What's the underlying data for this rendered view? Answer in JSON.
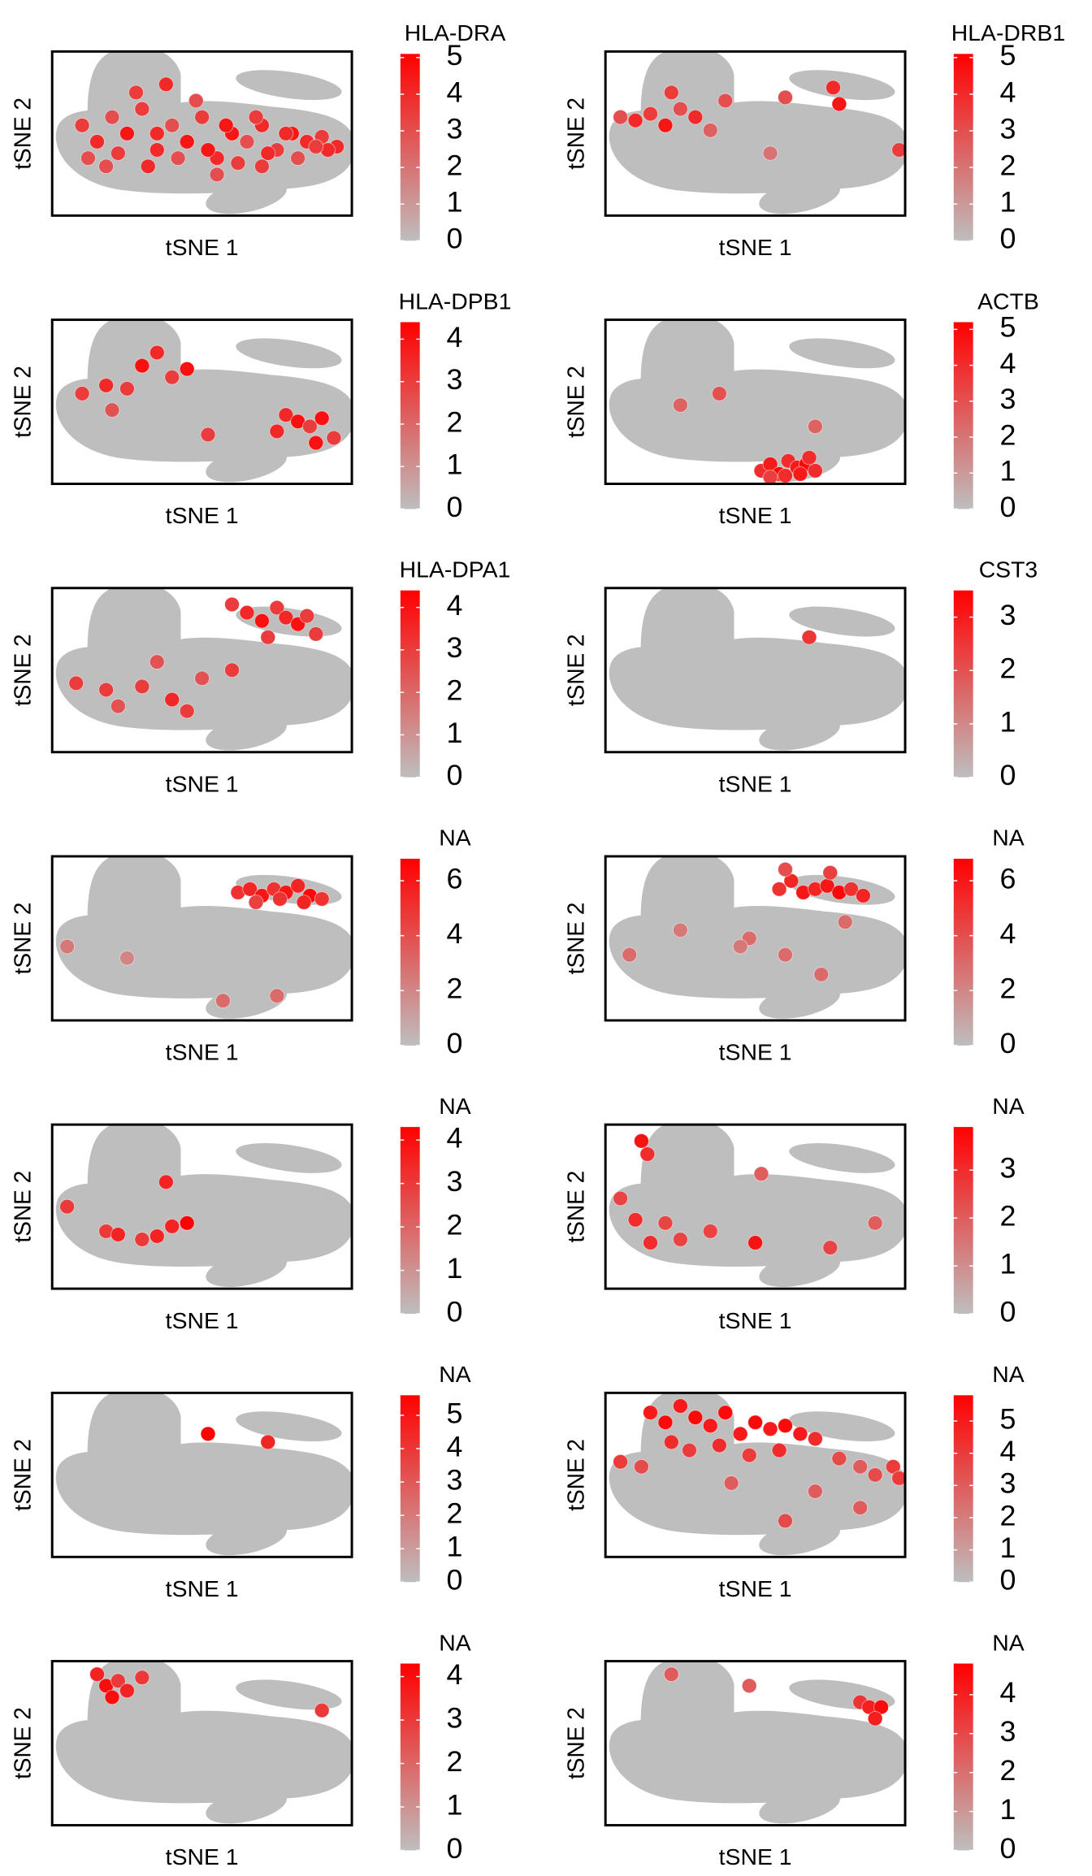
{
  "chart_data": [
    {
      "type": "scatter",
      "title": "HLA-DRA",
      "xlabel": "tSNE 1",
      "ylabel": "tSNE 2",
      "xlim": [
        0,
        100
      ],
      "ylim": [
        0,
        100
      ],
      "clim": [
        0,
        5.1
      ],
      "cticks": [
        0,
        1,
        2,
        3,
        4,
        5
      ],
      "color_low": "#bebebe",
      "color_high": "#ff0000",
      "x": [
        10,
        15,
        20,
        25,
        30,
        35,
        40,
        45,
        50,
        55,
        60,
        65,
        70,
        75,
        80,
        85,
        90,
        95,
        12,
        22,
        32,
        42,
        52,
        62,
        72,
        82,
        92,
        28,
        38,
        48,
        58,
        68,
        78,
        88,
        18,
        35,
        55,
        70
      ],
      "y": [
        55,
        45,
        60,
        50,
        65,
        40,
        55,
        45,
        60,
        35,
        50,
        45,
        55,
        40,
        50,
        45,
        48,
        42,
        35,
        38,
        30,
        35,
        40,
        32,
        38,
        35,
        40,
        75,
        80,
        70,
        55,
        60,
        50,
        42,
        30,
        50,
        25,
        30
      ],
      "values": [
        3.5,
        4,
        3,
        4.5,
        3.5,
        4,
        3,
        4.5,
        3.5,
        4,
        4.5,
        3,
        4,
        3.5,
        4.5,
        4,
        3.5,
        4,
        3,
        3.5,
        4,
        3,
        4.5,
        3.5,
        4,
        3,
        4,
        3.5,
        4,
        3,
        4.5,
        3.5,
        4,
        3.5,
        3,
        4,
        3,
        3.5
      ]
    },
    {
      "type": "scatter",
      "title": "HLA-DRB1",
      "xlabel": "tSNE 1",
      "ylabel": "tSNE 2",
      "xlim": [
        0,
        100
      ],
      "ylim": [
        0,
        100
      ],
      "clim": [
        0,
        5.1
      ],
      "cticks": [
        0,
        1,
        2,
        3,
        4,
        5
      ],
      "color_low": "#bebebe",
      "color_high": "#ff0000",
      "x": [
        5,
        10,
        15,
        20,
        25,
        30,
        35,
        40,
        22,
        60,
        76,
        55,
        78,
        98
      ],
      "y": [
        60,
        58,
        62,
        55,
        65,
        60,
        52,
        70,
        75,
        72,
        78,
        38,
        68,
        40
      ],
      "values": [
        3,
        4,
        3.5,
        4.5,
        3,
        4,
        2.5,
        3,
        3.5,
        3,
        4,
        2,
        4.5,
        3.5
      ]
    },
    {
      "type": "scatter",
      "title": "HLA-DPB1",
      "xlabel": "tSNE 1",
      "ylabel": "tSNE 2",
      "xlim": [
        0,
        100
      ],
      "ylim": [
        0,
        100
      ],
      "clim": [
        0,
        4.4
      ],
      "cticks": [
        0,
        1,
        2,
        3,
        4
      ],
      "color_low": "#bebebe",
      "color_high": "#ff0000",
      "x": [
        10,
        18,
        25,
        30,
        35,
        40,
        45,
        20,
        78,
        82,
        86,
        90,
        94,
        75,
        88,
        52
      ],
      "y": [
        55,
        60,
        58,
        72,
        80,
        65,
        70,
        45,
        42,
        38,
        35,
        40,
        28,
        32,
        25,
        30
      ],
      "values": [
        3,
        3.5,
        3,
        4,
        3.5,
        3,
        4,
        2.5,
        3.5,
        4,
        3,
        4,
        3,
        3.5,
        4,
        3
      ]
    },
    {
      "type": "scatter",
      "title": "ACTB",
      "xlabel": "tSNE 1",
      "ylabel": "tSNE 2",
      "xlim": [
        0,
        100
      ],
      "ylim": [
        0,
        100
      ],
      "clim": [
        0,
        5.2
      ],
      "cticks": [
        0,
        1,
        2,
        3,
        4,
        5
      ],
      "color_low": "#bebebe",
      "color_high": "#ff0000",
      "x": [
        52,
        55,
        58,
        61,
        64,
        67,
        70,
        55,
        60,
        65,
        68,
        25,
        38,
        70
      ],
      "y": [
        8,
        12,
        6,
        14,
        10,
        12,
        8,
        4,
        5,
        6,
        16,
        48,
        55,
        35
      ],
      "values": [
        4,
        4.5,
        5,
        4,
        4.5,
        5,
        4,
        3.5,
        4,
        4.5,
        4,
        2.5,
        3,
        2.5
      ]
    },
    {
      "type": "scatter",
      "title": "HLA-DPA1",
      "xlabel": "tSNE 1",
      "ylabel": "tSNE 2",
      "xlim": [
        0,
        100
      ],
      "ylim": [
        0,
        100
      ],
      "clim": [
        0,
        4.4
      ],
      "cticks": [
        0,
        1,
        2,
        3,
        4
      ],
      "color_low": "#bebebe",
      "color_high": "#ff0000",
      "x": [
        60,
        65,
        70,
        75,
        78,
        82,
        85,
        72,
        8,
        22,
        30,
        40,
        50,
        60,
        45,
        35,
        18,
        88
      ],
      "y": [
        90,
        85,
        80,
        88,
        82,
        78,
        83,
        70,
        42,
        28,
        40,
        32,
        45,
        50,
        25,
        55,
        38,
        72
      ],
      "values": [
        3,
        3.5,
        4,
        3,
        3.5,
        4,
        3,
        3,
        3,
        2.5,
        3,
        3.5,
        2.5,
        3,
        3,
        2.5,
        3,
        3
      ]
    },
    {
      "type": "scatter",
      "title": "CST3",
      "xlabel": "tSNE 1",
      "ylabel": "tSNE 2",
      "xlim": [
        0,
        100
      ],
      "ylim": [
        0,
        100
      ],
      "clim": [
        0,
        3.5
      ],
      "cticks": [
        0,
        1,
        2,
        3
      ],
      "color_low": "#bebebe",
      "color_high": "#ff0000",
      "x": [
        68
      ],
      "y": [
        70
      ],
      "values": [
        2.5
      ]
    },
    {
      "type": "scatter",
      "title": "NA",
      "xlabel": "tSNE 1",
      "ylabel": "tSNE 2",
      "xlim": [
        0,
        100
      ],
      "ylim": [
        0,
        100
      ],
      "clim": [
        0,
        6.8
      ],
      "cticks": [
        0,
        2,
        4,
        6
      ],
      "color_low": "#bebebe",
      "color_high": "#ff0000",
      "x": [
        62,
        66,
        70,
        74,
        78,
        82,
        86,
        90,
        68,
        76,
        84,
        5,
        25,
        75,
        57
      ],
      "y": [
        78,
        80,
        76,
        80,
        78,
        82,
        76,
        74,
        72,
        74,
        72,
        45,
        38,
        15,
        12
      ],
      "values": [
        5,
        5.5,
        6,
        5,
        6,
        5.5,
        6.5,
        5,
        4.5,
        5,
        5.5,
        2.5,
        2,
        3,
        3
      ]
    },
    {
      "type": "scatter",
      "title": "NA",
      "xlabel": "tSNE 1",
      "ylabel": "tSNE 2",
      "xlim": [
        0,
        100
      ],
      "ylim": [
        0,
        100
      ],
      "clim": [
        0,
        6.8
      ],
      "cticks": [
        0,
        2,
        4,
        6
      ],
      "color_low": "#bebebe",
      "color_high": "#ff0000",
      "x": [
        58,
        62,
        66,
        70,
        74,
        78,
        82,
        86,
        60,
        75,
        8,
        25,
        48,
        60,
        45,
        72,
        80
      ],
      "y": [
        80,
        85,
        78,
        80,
        82,
        78,
        80,
        76,
        92,
        90,
        40,
        55,
        50,
        40,
        45,
        28,
        60
      ],
      "values": [
        5,
        5.5,
        6,
        5.5,
        6,
        6.5,
        5,
        5.5,
        4,
        4.5,
        3,
        2.5,
        3,
        3,
        2.5,
        3,
        3
      ]
    },
    {
      "type": "scatter",
      "title": "NA",
      "xlabel": "tSNE 1",
      "ylabel": "tSNE 2",
      "xlim": [
        0,
        100
      ],
      "ylim": [
        0,
        100
      ],
      "clim": [
        0,
        4.3
      ],
      "cticks": [
        0,
        1,
        2,
        3,
        4
      ],
      "color_low": "#bebebe",
      "color_high": "#ff0000",
      "x": [
        5,
        18,
        22,
        30,
        35,
        40,
        45,
        38
      ],
      "y": [
        50,
        35,
        33,
        30,
        32,
        38,
        40,
        65
      ],
      "values": [
        3,
        3,
        3.5,
        3,
        3.5,
        3.5,
        4.3,
        3.5
      ]
    },
    {
      "type": "scatter",
      "title": "NA",
      "xlabel": "tSNE 1",
      "ylabel": "tSNE 2",
      "xlim": [
        0,
        100
      ],
      "ylim": [
        0,
        100
      ],
      "clim": [
        0,
        3.9
      ],
      "cticks": [
        0,
        1,
        2,
        3
      ],
      "color_low": "#bebebe",
      "color_high": "#ff0000",
      "x": [
        12,
        14,
        5,
        10,
        20,
        15,
        25,
        35,
        50,
        52,
        75,
        90
      ],
      "y": [
        90,
        82,
        55,
        42,
        40,
        28,
        30,
        35,
        28,
        70,
        25,
        40
      ],
      "values": [
        3.5,
        3,
        2.5,
        3,
        2.5,
        3,
        2.5,
        2.5,
        3.5,
        2,
        2.5,
        2
      ]
    },
    {
      "type": "scatter",
      "title": "NA",
      "xlabel": "tSNE 1",
      "ylabel": "tSNE 2",
      "xlim": [
        0,
        100
      ],
      "ylim": [
        0,
        100
      ],
      "clim": [
        0,
        5.6
      ],
      "cticks": [
        0,
        1,
        2,
        3,
        4,
        5
      ],
      "color_low": "#bebebe",
      "color_high": "#ff0000",
      "x": [
        52,
        72
      ],
      "y": [
        75,
        70
      ],
      "values": [
        5.5,
        4.5
      ]
    },
    {
      "type": "scatter",
      "title": "NA",
      "xlabel": "tSNE 1",
      "ylabel": "tSNE 2",
      "xlim": [
        0,
        100
      ],
      "ylim": [
        0,
        100
      ],
      "clim": [
        0,
        5.8
      ],
      "cticks": [
        0,
        1,
        2,
        3,
        4,
        5
      ],
      "color_low": "#bebebe",
      "color_high": "#ff0000",
      "x": [
        15,
        20,
        25,
        30,
        35,
        40,
        45,
        50,
        55,
        60,
        65,
        70,
        22,
        28,
        38,
        48,
        58,
        5,
        12,
        42,
        78,
        85,
        90,
        96,
        98,
        85,
        70,
        60
      ],
      "y": [
        88,
        82,
        92,
        85,
        80,
        88,
        75,
        82,
        78,
        80,
        75,
        72,
        70,
        65,
        68,
        62,
        65,
        58,
        55,
        45,
        60,
        55,
        50,
        55,
        48,
        30,
        40,
        22
      ],
      "values": [
        5,
        5.5,
        5,
        5.5,
        5,
        5.5,
        5,
        5.5,
        5,
        5.5,
        5,
        4.5,
        4.5,
        4,
        4.5,
        4,
        4.5,
        4,
        3.5,
        3,
        3.5,
        3,
        3.5,
        4,
        4,
        3,
        3,
        3.5
      ]
    },
    {
      "type": "scatter",
      "title": "NA",
      "xlabel": "tSNE 1",
      "ylabel": "tSNE 2",
      "xlim": [
        0,
        100
      ],
      "ylim": [
        0,
        100
      ],
      "clim": [
        0,
        4.3
      ],
      "cticks": [
        0,
        1,
        2,
        3,
        4
      ],
      "color_low": "#bebebe",
      "color_high": "#ff0000",
      "x": [
        15,
        18,
        22,
        25,
        20,
        30,
        90
      ],
      "y": [
        92,
        85,
        88,
        82,
        78,
        90,
        70
      ],
      "values": [
        3.5,
        4,
        3,
        3.5,
        4,
        3,
        3
      ]
    },
    {
      "type": "scatter",
      "title": "NA",
      "xlabel": "tSNE 1",
      "ylabel": "tSNE 2",
      "xlim": [
        0,
        100
      ],
      "ylim": [
        0,
        100
      ],
      "clim": [
        0,
        4.8
      ],
      "cticks": [
        0,
        1,
        2,
        3,
        4
      ],
      "color_low": "#bebebe",
      "color_high": "#ff0000",
      "x": [
        22,
        48,
        85,
        88,
        92,
        90
      ],
      "y": [
        92,
        85,
        75,
        72,
        72,
        65
      ],
      "values": [
        2.5,
        2.5,
        3.5,
        4,
        4.5,
        4
      ]
    }
  ]
}
